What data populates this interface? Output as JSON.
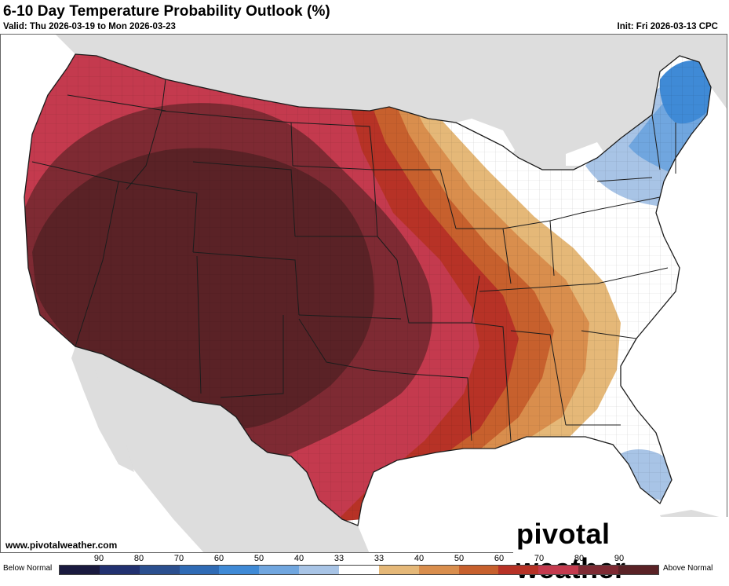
{
  "header": {
    "title": "6-10 Day Temperature Probability Outlook (%)",
    "valid": "Valid: Thu 2026-03-19 to Mon 2026-03-23",
    "init": "Init: Fri 2026-03-13 CPC"
  },
  "footer": {
    "credit": "www.pivotalweather.com",
    "brand": "pivotal weather"
  },
  "legend": {
    "left_label": "Below Normal",
    "right_label": "Above Normal",
    "ticks": [
      "90",
      "80",
      "70",
      "60",
      "50",
      "40",
      "33",
      "33",
      "40",
      "50",
      "60",
      "70",
      "80",
      "90"
    ],
    "colors": [
      "#1a1a3f",
      "#223170",
      "#2b4f8f",
      "#2f6bb5",
      "#3f8ad6",
      "#70a6df",
      "#a8c4e6",
      "#ffffff",
      "#e5b878",
      "#d98e4d",
      "#c7602d",
      "#b73226",
      "#c43a4e",
      "#7e2a33",
      "#5a2226"
    ]
  },
  "map_colors": {
    "ocean": "#ffffff",
    "land_outside": "#dddddd",
    "us_base": "#ffffff",
    "state_line": "#1c1c1c",
    "county_line": "#9a9a9a"
  },
  "regions": {
    "above_90": "#5a2226",
    "above_80": "#7e2a33",
    "above_70": "#c43a4e",
    "above_60": "#b73226",
    "above_50": "#c7602d",
    "above_40": "#d98e4d",
    "above_33": "#e5b878",
    "below_33_northeast": "#a8c4e6",
    "below_40_northeast": "#70a6df",
    "below_50_maine": "#3f8ad6",
    "below_33_florida": "#a8c4e6"
  }
}
